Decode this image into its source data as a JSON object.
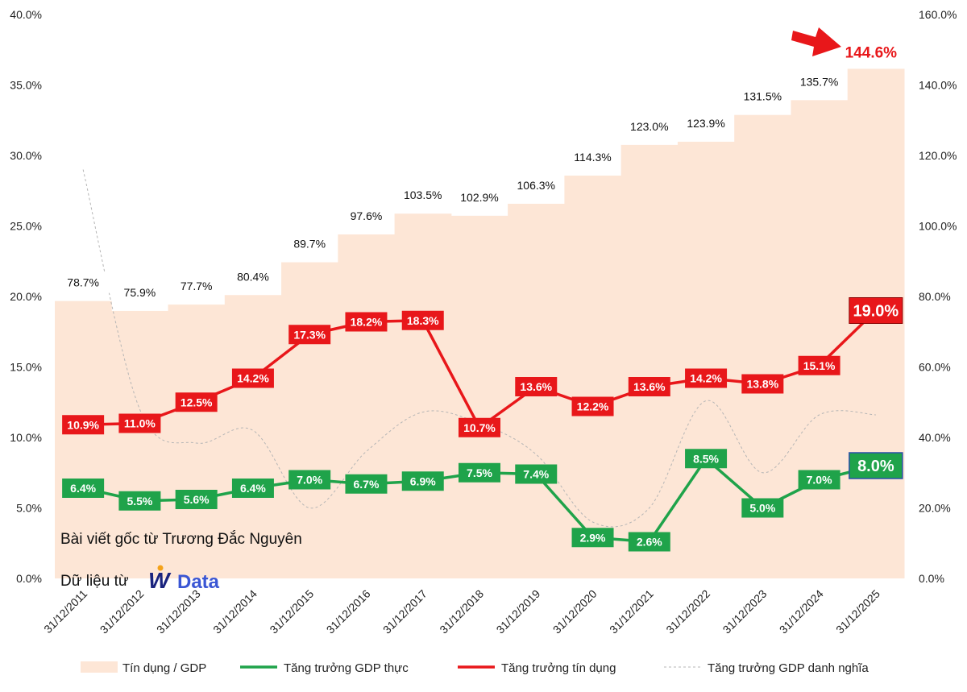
{
  "colors": {
    "area": "#fde6d6",
    "gdp_real": "#1fa34a",
    "credit_growth": "#e8171a",
    "gdp_nominal": "#b5b5b5",
    "highlight_border": "#2b4fa8",
    "logo": "#3a56d4"
  },
  "credits": {
    "line1": "Bài viết gốc từ Trương Đắc Nguyên",
    "line2": "Dữ liệu từ",
    "logo_prefix": "W",
    "logo_text": "Data"
  },
  "chart_data": {
    "type": "line",
    "categories": [
      "31/12/2011",
      "31/12/2012",
      "31/12/2013",
      "31/12/2014",
      "31/12/2015",
      "31/12/2016",
      "31/12/2017",
      "31/12/2018",
      "31/12/2019",
      "31/12/2020",
      "31/12/2021",
      "31/12/2022",
      "31/12/2023",
      "31/12/2024",
      "31/12/2025"
    ],
    "y_left": {
      "min": 0,
      "max": 40,
      "step": 5,
      "ticks": [
        "0.0%",
        "5.0%",
        "10.0%",
        "15.0%",
        "20.0%",
        "25.0%",
        "30.0%",
        "35.0%",
        "40.0%"
      ]
    },
    "y_right": {
      "min": 0,
      "max": 160,
      "step": 20,
      "ticks": [
        "0.0%",
        "20.0%",
        "40.0%",
        "60.0%",
        "80.0%",
        "100.0%",
        "120.0%",
        "140.0%",
        "160.0%"
      ]
    },
    "legend_position": "bottom",
    "grid": false,
    "series": [
      {
        "name": "Tín dụng / GDP",
        "kind": "area",
        "axis": "right",
        "values": [
          78.7,
          75.9,
          77.7,
          80.4,
          89.7,
          97.6,
          103.5,
          102.9,
          106.3,
          114.3,
          123.0,
          123.9,
          131.5,
          135.7,
          144.6
        ],
        "labels": [
          "78.7%",
          "75.9%",
          "77.7%",
          "80.4%",
          "89.7%",
          "97.6%",
          "103.5%",
          "102.9%",
          "106.3%",
          "114.3%",
          "123.0%",
          "123.9%",
          "131.5%",
          "135.7%",
          "144.6%"
        ]
      },
      {
        "name": "Tăng trưởng GDP thực",
        "kind": "line",
        "axis": "left",
        "values": [
          6.4,
          5.5,
          5.6,
          6.4,
          7.0,
          6.7,
          6.9,
          7.5,
          7.4,
          2.9,
          2.6,
          8.5,
          5.0,
          7.0,
          8.0
        ],
        "labels": [
          "6.4%",
          "5.5%",
          "5.6%",
          "6.4%",
          "7.0%",
          "6.7%",
          "6.9%",
          "7.5%",
          "7.4%",
          "2.9%",
          "2.6%",
          "8.5%",
          "5.0%",
          "7.0%",
          "8.0%"
        ]
      },
      {
        "name": "Tăng trưởng tín dụng",
        "kind": "line",
        "axis": "left",
        "values": [
          10.9,
          11.0,
          12.5,
          14.2,
          17.3,
          18.2,
          18.3,
          10.7,
          13.6,
          12.2,
          13.6,
          14.2,
          13.8,
          15.1,
          19.0
        ],
        "labels": [
          "10.9%",
          "11.0%",
          "12.5%",
          "14.2%",
          "17.3%",
          "18.2%",
          "18.3%",
          "10.7%",
          "13.6%",
          "12.2%",
          "13.6%",
          "14.2%",
          "13.8%",
          "15.1%",
          "19.0%"
        ]
      },
      {
        "name": "Tăng trưởng GDP danh nghĩa",
        "kind": "dashed-line",
        "axis": "left",
        "values": [
          29.0,
          12.0,
          9.6,
          10.5,
          5.0,
          9.0,
          11.8,
          11.0,
          8.8,
          4.0,
          5.0,
          12.6,
          7.5,
          11.6,
          11.6
        ]
      }
    ]
  }
}
